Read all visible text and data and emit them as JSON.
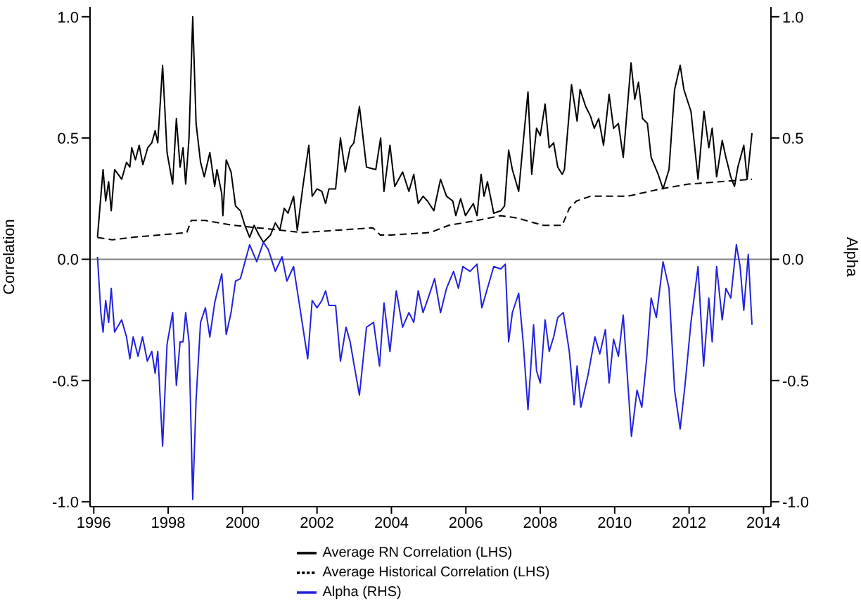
{
  "chart_data": {
    "type": "line",
    "ylabel": "Correlation",
    "y2label": "Alpha",
    "xlim": [
      1995.9,
      2014.2
    ],
    "xticks": [
      1996,
      1998,
      2000,
      2002,
      2004,
      2006,
      2008,
      2010,
      2012,
      2014
    ],
    "ylim": [
      -1.02,
      1.04
    ],
    "yticks": [
      {
        "value": -1,
        "label": "-1.0"
      },
      {
        "value": -0.5,
        "label": "-0.5"
      },
      {
        "value": 0,
        "label": "0.0"
      },
      {
        "value": 0.5,
        "label": "0.5"
      },
      {
        "value": 1,
        "label": "1.0"
      }
    ],
    "y2lim": [
      -1.02,
      1.04
    ],
    "y2ticks": [
      {
        "value": -1,
        "label": "-1.0"
      },
      {
        "value": -0.5,
        "label": "-0.5"
      },
      {
        "value": 0,
        "label": "0.0"
      },
      {
        "value": 0.5,
        "label": "0.5"
      },
      {
        "value": 1,
        "label": "1.0"
      }
    ],
    "legend": "bottom",
    "marker": "none",
    "ref_lines": [
      {
        "axis": "y",
        "value": 0,
        "color": "#808080"
      }
    ],
    "series": [
      {
        "name": "Average RN Correlation (LHS)",
        "color": "#000000",
        "line_style": "solid",
        "x": [
          1996.1,
          1996.19,
          1996.25,
          1996.32,
          1996.4,
          1996.47,
          1996.56,
          1996.75,
          1996.88,
          1996.97,
          1997.02,
          1997.12,
          1997.22,
          1997.32,
          1997.45,
          1997.56,
          1997.65,
          1997.72,
          1997.85,
          1997.97,
          1998.12,
          1998.22,
          1998.32,
          1998.4,
          1998.47,
          1998.56,
          1998.66,
          1998.75,
          1998.87,
          1998.97,
          1999.12,
          1999.25,
          1999.31,
          1999.44,
          1999.47,
          1999.56,
          1999.69,
          1999.81,
          1999.94,
          2000.06,
          2000.19,
          2000.31,
          2000.44,
          2000.56,
          2000.75,
          2000.88,
          2001.0,
          2001.12,
          2001.22,
          2001.37,
          2001.47,
          2001.62,
          2001.78,
          2001.87,
          2002.0,
          2002.13,
          2002.23,
          2002.32,
          2002.5,
          2002.63,
          2002.76,
          2002.89,
          2002.99,
          2003.14,
          2003.33,
          2003.58,
          2003.71,
          2003.8,
          2003.96,
          2004.09,
          2004.3,
          2004.47,
          2004.6,
          2004.72,
          2004.85,
          2004.97,
          2005.14,
          2005.32,
          2005.48,
          2005.65,
          2005.73,
          2005.86,
          2005.99,
          2006.2,
          2006.3,
          2006.41,
          2006.49,
          2006.58,
          2006.75,
          2006.94,
          2007.04,
          2007.15,
          2007.25,
          2007.42,
          2007.54,
          2007.67,
          2007.77,
          2007.9,
          2008.0,
          2008.13,
          2008.24,
          2008.36,
          2008.47,
          2008.59,
          2008.65,
          2008.84,
          2008.99,
          2009.07,
          2009.22,
          2009.35,
          2009.45,
          2009.57,
          2009.7,
          2009.85,
          2009.97,
          2010.1,
          2010.23,
          2010.44,
          2010.54,
          2010.64,
          2010.75,
          2010.88,
          2010.98,
          2011.17,
          2011.3,
          2011.46,
          2011.61,
          2011.76,
          2011.86,
          2012.05,
          2012.14,
          2012.24,
          2012.4,
          2012.53,
          2012.62,
          2012.74,
          2012.89,
          2012.99,
          2013.12,
          2013.22,
          2013.31,
          2013.47,
          2013.56,
          2013.69
        ],
        "values": [
          0.09,
          0.26,
          0.37,
          0.24,
          0.32,
          0.2,
          0.37,
          0.33,
          0.4,
          0.38,
          0.46,
          0.41,
          0.47,
          0.39,
          0.46,
          0.48,
          0.53,
          0.48,
          0.8,
          0.44,
          0.31,
          0.58,
          0.38,
          0.46,
          0.31,
          0.5,
          1.0,
          0.56,
          0.4,
          0.34,
          0.44,
          0.3,
          0.37,
          0.27,
          0.18,
          0.41,
          0.36,
          0.22,
          0.2,
          0.14,
          0.09,
          0.14,
          0.1,
          0.07,
          0.1,
          0.15,
          0.12,
          0.21,
          0.19,
          0.26,
          0.12,
          0.3,
          0.47,
          0.26,
          0.29,
          0.28,
          0.23,
          0.29,
          0.29,
          0.5,
          0.36,
          0.46,
          0.48,
          0.63,
          0.38,
          0.37,
          0.5,
          0.28,
          0.47,
          0.3,
          0.36,
          0.28,
          0.35,
          0.23,
          0.26,
          0.24,
          0.2,
          0.33,
          0.26,
          0.24,
          0.18,
          0.25,
          0.18,
          0.23,
          0.18,
          0.35,
          0.26,
          0.32,
          0.19,
          0.2,
          0.22,
          0.45,
          0.37,
          0.28,
          0.48,
          0.69,
          0.35,
          0.54,
          0.51,
          0.64,
          0.46,
          0.48,
          0.38,
          0.35,
          0.37,
          0.72,
          0.57,
          0.7,
          0.63,
          0.59,
          0.54,
          0.58,
          0.47,
          0.68,
          0.54,
          0.56,
          0.42,
          0.81,
          0.66,
          0.73,
          0.58,
          0.56,
          0.42,
          0.35,
          0.29,
          0.37,
          0.7,
          0.8,
          0.7,
          0.61,
          0.48,
          0.33,
          0.61,
          0.46,
          0.54,
          0.34,
          0.49,
          0.42,
          0.34,
          0.3,
          0.38,
          0.47,
          0.33,
          0.52
        ]
      },
      {
        "name": "Average Historical Correlation (LHS)",
        "color": "#000000",
        "line_style": "dashed",
        "x": [
          1996.1,
          1996.5,
          1997.0,
          1997.75,
          1998.5,
          1998.62,
          1999.0,
          1999.75,
          2000.4,
          2001.0,
          2001.62,
          2003.5,
          2003.7,
          2004.0,
          2005.04,
          2005.54,
          2006.3,
          2006.94,
          2007.38,
          2007.84,
          2008.09,
          2008.59,
          2008.78,
          2008.97,
          2009.35,
          2010.35,
          2011.23,
          2011.99,
          2013.69
        ],
        "values": [
          0.09,
          0.08,
          0.09,
          0.1,
          0.11,
          0.16,
          0.16,
          0.14,
          0.13,
          0.12,
          0.11,
          0.13,
          0.1,
          0.1,
          0.11,
          0.14,
          0.16,
          0.18,
          0.17,
          0.15,
          0.14,
          0.14,
          0.21,
          0.24,
          0.26,
          0.26,
          0.29,
          0.31,
          0.33
        ]
      },
      {
        "name": "Alpha (RHS)",
        "color": "#2222dd",
        "line_style": "solid",
        "axis": "y2",
        "x": [
          1996.1,
          1996.19,
          1996.25,
          1996.32,
          1996.4,
          1996.47,
          1996.56,
          1996.75,
          1996.88,
          1996.97,
          1997.06,
          1997.19,
          1997.31,
          1997.44,
          1997.56,
          1997.65,
          1997.72,
          1997.85,
          1997.97,
          1998.12,
          1998.22,
          1998.32,
          1998.4,
          1998.47,
          1998.56,
          1998.66,
          1998.75,
          1998.87,
          1999.0,
          1999.12,
          1999.25,
          1999.31,
          1999.44,
          1999.56,
          1999.69,
          1999.81,
          1999.94,
          2000.19,
          2000.38,
          2000.56,
          2000.69,
          2000.88,
          2001.06,
          2001.19,
          2001.37,
          2001.5,
          2001.75,
          2001.87,
          2002.0,
          2002.13,
          2002.23,
          2002.32,
          2002.5,
          2002.63,
          2002.78,
          2002.89,
          2002.99,
          2003.14,
          2003.33,
          2003.52,
          2003.68,
          2003.8,
          2003.96,
          2004.13,
          2004.3,
          2004.47,
          2004.6,
          2004.72,
          2004.85,
          2005.01,
          2005.16,
          2005.32,
          2005.48,
          2005.67,
          2005.8,
          2005.92,
          2006.11,
          2006.3,
          2006.43,
          2006.58,
          2006.75,
          2006.94,
          2007.06,
          2007.15,
          2007.25,
          2007.42,
          2007.54,
          2007.67,
          2007.82,
          2007.9,
          2008.0,
          2008.13,
          2008.24,
          2008.36,
          2008.47,
          2008.62,
          2008.78,
          2008.91,
          2008.99,
          2009.09,
          2009.28,
          2009.47,
          2009.6,
          2009.75,
          2009.85,
          2009.97,
          2010.1,
          2010.23,
          2010.45,
          2010.6,
          2010.73,
          2010.86,
          2010.98,
          2011.12,
          2011.3,
          2011.46,
          2011.61,
          2011.76,
          2011.89,
          2012.05,
          2012.24,
          2012.39,
          2012.53,
          2012.62,
          2012.74,
          2012.89,
          2012.99,
          2013.12,
          2013.27,
          2013.37,
          2013.47,
          2013.59,
          2013.69
        ],
        "values": [
          0.01,
          -0.22,
          -0.3,
          -0.17,
          -0.26,
          -0.12,
          -0.3,
          -0.25,
          -0.32,
          -0.41,
          -0.32,
          -0.4,
          -0.32,
          -0.42,
          -0.38,
          -0.47,
          -0.38,
          -0.77,
          -0.35,
          -0.22,
          -0.52,
          -0.34,
          -0.34,
          -0.22,
          -0.34,
          -0.99,
          -0.58,
          -0.26,
          -0.2,
          -0.32,
          -0.18,
          -0.14,
          -0.06,
          -0.31,
          -0.22,
          -0.09,
          -0.08,
          0.06,
          -0.01,
          0.07,
          0.04,
          -0.05,
          0.01,
          -0.09,
          -0.03,
          -0.16,
          -0.41,
          -0.17,
          -0.2,
          -0.17,
          -0.13,
          -0.19,
          -0.19,
          -0.42,
          -0.28,
          -0.34,
          -0.43,
          -0.56,
          -0.28,
          -0.26,
          -0.44,
          -0.18,
          -0.38,
          -0.13,
          -0.28,
          -0.22,
          -0.26,
          -0.13,
          -0.22,
          -0.15,
          -0.08,
          -0.22,
          -0.12,
          -0.05,
          -0.12,
          -0.03,
          -0.05,
          -0.02,
          -0.2,
          -0.12,
          -0.03,
          -0.04,
          -0.02,
          -0.34,
          -0.22,
          -0.14,
          -0.34,
          -0.62,
          -0.27,
          -0.46,
          -0.51,
          -0.25,
          -0.38,
          -0.32,
          -0.24,
          -0.22,
          -0.38,
          -0.6,
          -0.44,
          -0.61,
          -0.48,
          -0.32,
          -0.39,
          -0.29,
          -0.51,
          -0.33,
          -0.4,
          -0.23,
          -0.73,
          -0.54,
          -0.61,
          -0.41,
          -0.16,
          -0.24,
          -0.01,
          -0.12,
          -0.54,
          -0.7,
          -0.52,
          -0.26,
          -0.03,
          -0.44,
          -0.16,
          -0.34,
          -0.03,
          -0.25,
          -0.12,
          -0.16,
          0.06,
          -0.03,
          -0.21,
          0.02,
          -0.27
        ]
      }
    ]
  }
}
